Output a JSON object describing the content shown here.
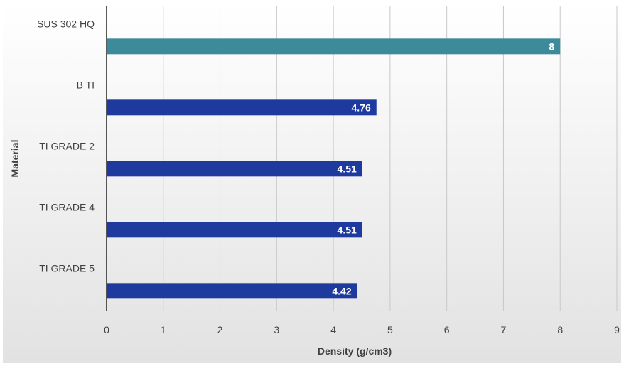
{
  "chart_data": {
    "type": "bar",
    "orientation": "horizontal",
    "title": "",
    "xlabel": "Density (g/cm3)",
    "ylabel": "Material",
    "xlim": [
      0,
      9
    ],
    "x_ticks": [
      "0",
      "1",
      "2",
      "3",
      "4",
      "5",
      "6",
      "7",
      "8",
      "9"
    ],
    "categories": [
      "SUS 302 HQ",
      "B TI",
      "TI GRADE 2",
      "TI GRADE 4",
      "TI GRADE 5"
    ],
    "values": [
      8,
      4.76,
      4.51,
      4.51,
      4.42
    ],
    "data_labels": [
      "8",
      "4.76",
      "4.51",
      "4.51",
      "4.42"
    ],
    "bar_colors": [
      "#3d8a9a",
      "#1f3a9e",
      "#1f3a9e",
      "#1f3a9e",
      "#1f3a9e"
    ],
    "grid": true,
    "legend": "none"
  }
}
